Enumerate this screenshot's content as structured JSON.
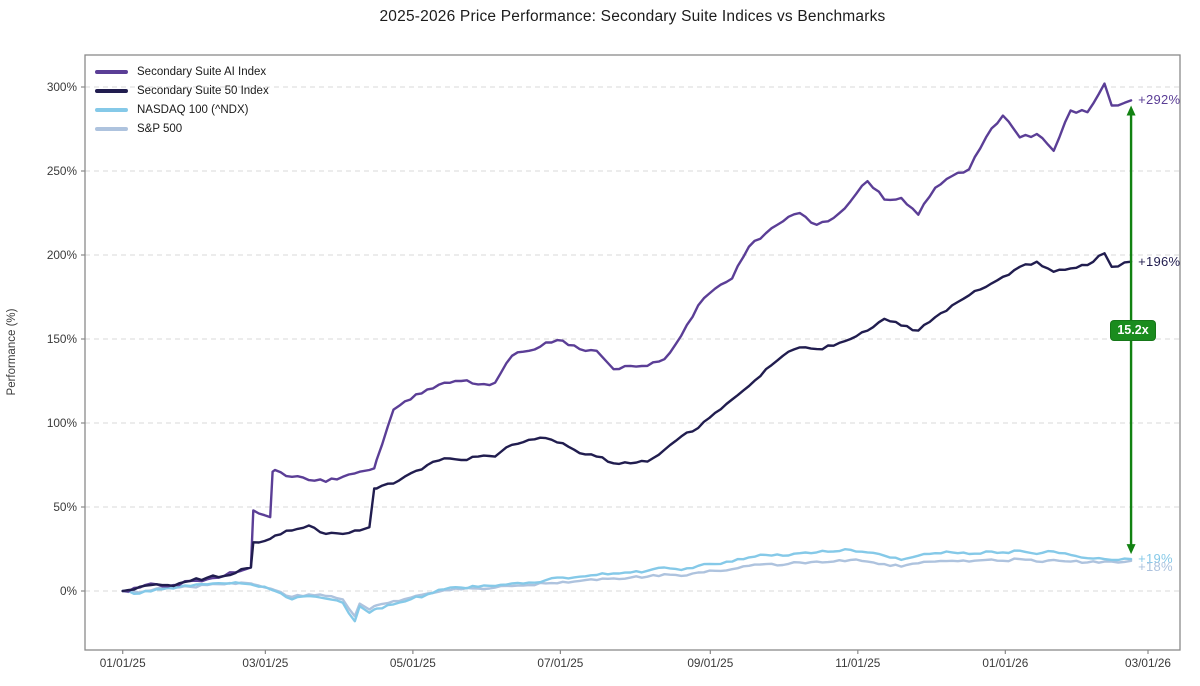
{
  "chart_data": {
    "type": "line",
    "title": "2025-2026 Price Performance: Secondary Suite Indices vs Benchmarks",
    "ylabel": "Performance (%)",
    "grid": "horizontal-dashed",
    "legend_position": "top-left",
    "ylim": [
      -35,
      319
    ],
    "y_ticks": [
      0,
      50,
      100,
      150,
      200,
      250,
      300
    ],
    "y_tick_suffix": "%",
    "x_tick_labels": [
      "01/01/25",
      "03/01/25",
      "05/01/25",
      "07/01/25",
      "09/01/25",
      "11/01/25",
      "01/01/26",
      "03/01/26"
    ],
    "x_tick_days": [
      0,
      59,
      120,
      181,
      243,
      304,
      365,
      424
    ],
    "x_days": [
      0,
      7,
      14,
      21,
      28,
      35,
      42,
      49,
      53,
      54,
      61,
      62,
      63,
      70,
      77,
      84,
      91,
      96,
      98,
      102,
      104,
      105,
      112,
      119,
      126,
      133,
      140,
      147,
      154,
      161,
      168,
      175,
      182,
      189,
      196,
      203,
      210,
      217,
      224,
      231,
      238,
      245,
      252,
      259,
      266,
      273,
      280,
      287,
      294,
      301,
      308,
      315,
      322,
      329,
      336,
      343,
      350,
      357,
      364,
      371,
      378,
      385,
      392,
      399,
      406,
      409,
      417
    ],
    "series": [
      {
        "name": "Secondary Suite AI Index",
        "color": "#5b3e96",
        "end_label": "+292%",
        "values": [
          0,
          2,
          4,
          3.5,
          6,
          7,
          9,
          12,
          14,
          48,
          44,
          71,
          72,
          68,
          66,
          65,
          68,
          70,
          71,
          72,
          73,
          78,
          108,
          114,
          120,
          124,
          125,
          123,
          124,
          140,
          143,
          148,
          149,
          144,
          143,
          132,
          134,
          134,
          138,
          152,
          170,
          180,
          186,
          205,
          213,
          220,
          225,
          218,
          222,
          232,
          244,
          233,
          234,
          224,
          240,
          247,
          251,
          270,
          283,
          270,
          272,
          262,
          286,
          285,
          302,
          289,
          292
        ]
      },
      {
        "name": "Secondary Suite 50 Index",
        "color": "#211d4f",
        "end_label": "+196%",
        "values": [
          0,
          2.5,
          4,
          3,
          6,
          8,
          9,
          13,
          14,
          29,
          31,
          32,
          33,
          36,
          39,
          34,
          34,
          36,
          36,
          38,
          61,
          61,
          64,
          70,
          75,
          79,
          78,
          80,
          80,
          87,
          90,
          91,
          88,
          82,
          80,
          76,
          76,
          77,
          84,
          92,
          97,
          106,
          114,
          122,
          132,
          140,
          145,
          144,
          146,
          150,
          155,
          162,
          158,
          155,
          163,
          170,
          176,
          181,
          187,
          193,
          196,
          190,
          192,
          194,
          201,
          193,
          196
        ]
      },
      {
        "name": "NASDAQ 100 (^NDX)",
        "color": "#85c9e8",
        "end_label": "+19%",
        "values": [
          0,
          -1.5,
          1,
          1.5,
          3,
          4,
          4.5,
          4.5,
          4,
          3.5,
          1,
          0.5,
          0,
          -5,
          -3,
          -4.5,
          -7,
          -18,
          -9,
          -13,
          -11,
          -10.5,
          -8,
          -5,
          -2,
          1,
          2,
          2.5,
          3,
          4.5,
          5,
          6.5,
          8,
          8.5,
          9.5,
          10.5,
          11,
          12,
          14,
          12.5,
          15,
          16,
          17.5,
          20,
          21.5,
          21,
          22.5,
          23,
          23.5,
          24.5,
          23,
          21,
          18.5,
          21,
          22.5,
          23,
          22,
          23.5,
          23,
          24,
          22,
          23.5,
          21.5,
          19.5,
          19,
          18.5,
          19
        ]
      },
      {
        "name": "S&P 500",
        "color": "#aec3de",
        "end_label": "+18%",
        "values": [
          0,
          -1,
          1.5,
          2,
          2.5,
          3.5,
          4,
          5,
          4.5,
          4,
          1.5,
          1,
          0.5,
          -3.5,
          -2,
          -3,
          -5,
          -15,
          -7.5,
          -11,
          -9,
          -8.5,
          -6,
          -4,
          -1.5,
          0.5,
          1,
          1.5,
          2,
          3,
          3.5,
          4.5,
          5.5,
          6,
          6.5,
          7.5,
          8,
          8.5,
          10,
          9,
          11,
          12,
          13,
          15,
          16,
          15.5,
          17,
          17.5,
          17.5,
          18.5,
          17.5,
          16,
          14.5,
          16.5,
          17.5,
          18,
          17.5,
          18.5,
          18,
          19,
          17.5,
          18.5,
          17.5,
          17,
          17.5,
          17.5,
          18
        ]
      }
    ],
    "annotations": {
      "multiplier_badge": "15.2x",
      "badge_color": "#1a8c1e",
      "arrow_color": "#128212"
    }
  }
}
